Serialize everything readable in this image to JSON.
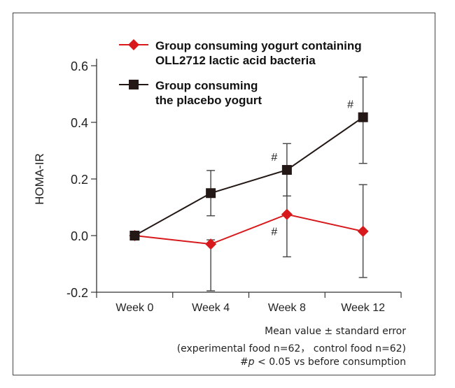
{
  "chart_data": {
    "type": "line",
    "ylabel": "HOMA-IR",
    "xlabel": "",
    "categories": [
      "Week 0",
      "Week 4",
      "Week 8",
      "Week 12"
    ],
    "ylim": [
      -0.2,
      0.6
    ],
    "yticks": [
      "0.6",
      "0.4",
      "0.2",
      "0.0",
      "-0.2"
    ],
    "ytick_values": [
      0.6,
      0.4,
      0.2,
      0.0,
      -0.2
    ],
    "grid": false,
    "legend_position": "top-left",
    "series": [
      {
        "name": "Group consuming yogurt containing OLL2712 lactic acid bacteria",
        "legend_lines": [
          "Group consuming yogurt containing",
          "OLL2712 lactic acid bacteria"
        ],
        "color": "#d7191c",
        "marker": "diamond",
        "values": [
          0.0,
          -0.03,
          0.075,
          0.015
        ],
        "err_low": [
          null,
          -0.195,
          -0.075,
          -0.148
        ],
        "err_high": [
          null,
          -0.015,
          0.225,
          0.18
        ],
        "significant": [
          false,
          false,
          true,
          false
        ]
      },
      {
        "name": "Group consuming the placebo yogurt",
        "legend_lines": [
          "Group consuming",
          "the placebo yogurt"
        ],
        "color": "#231815",
        "marker": "square",
        "values": [
          0.0,
          0.15,
          0.232,
          0.418
        ],
        "err_low": [
          null,
          0.07,
          0.14,
          0.255
        ],
        "err_high": [
          null,
          0.23,
          0.325,
          0.56
        ],
        "significant": [
          false,
          false,
          true,
          true
        ]
      }
    ],
    "significance_marker": "#",
    "notes": [
      "Mean value ± standard error",
      "(experimental food n=62， control food n=62)",
      "#p < 0.05 vs before consumption"
    ]
  },
  "footnote": {
    "line1": "Mean value ± standard error",
    "line2": "(experimental food n=62， control food n=62)",
    "line3_hash": "#",
    "line3_p": "p",
    "line3_rest": " < 0.05 vs before consumption"
  }
}
